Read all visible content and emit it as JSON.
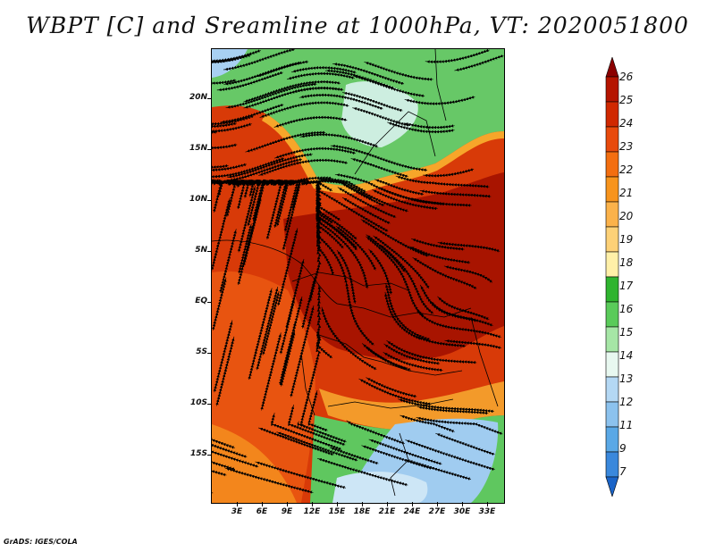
{
  "title": "WBPT [C] and Sreamline at 1000hPa, VT: 2020051800",
  "footer": "GrADS: IGES/COLA",
  "lat_labels": [
    "20N",
    "15N",
    "10N",
    "5N",
    "EQ",
    "5S",
    "10S",
    "15S"
  ],
  "lon_labels": [
    "3E",
    "6E",
    "9E",
    "12E",
    "15E",
    "18E",
    "21E",
    "24E",
    "27E",
    "30E",
    "33E"
  ],
  "colorbar": {
    "labels": [
      "26",
      "25",
      "24",
      "23",
      "22",
      "21",
      "20",
      "19",
      "18",
      "17",
      "16",
      "15",
      "14",
      "13",
      "12",
      "11",
      "9",
      "7"
    ],
    "colors": [
      "#8b0000",
      "#b51400",
      "#d02800",
      "#e84a0c",
      "#f36e10",
      "#f7941d",
      "#fbb24a",
      "#fdd177",
      "#fff0a8",
      "#2fb42f",
      "#5acb5a",
      "#a6e6a6",
      "#e8f8f0",
      "#b4d8f4",
      "#8cc2ee",
      "#5aa8e6",
      "#3a88dc",
      "#1a64c8"
    ]
  },
  "colors": {
    "green": "#5fc75f",
    "red": "#c0210a",
    "orange": "#f39a2a",
    "blue": "#9ec8ee"
  }
}
